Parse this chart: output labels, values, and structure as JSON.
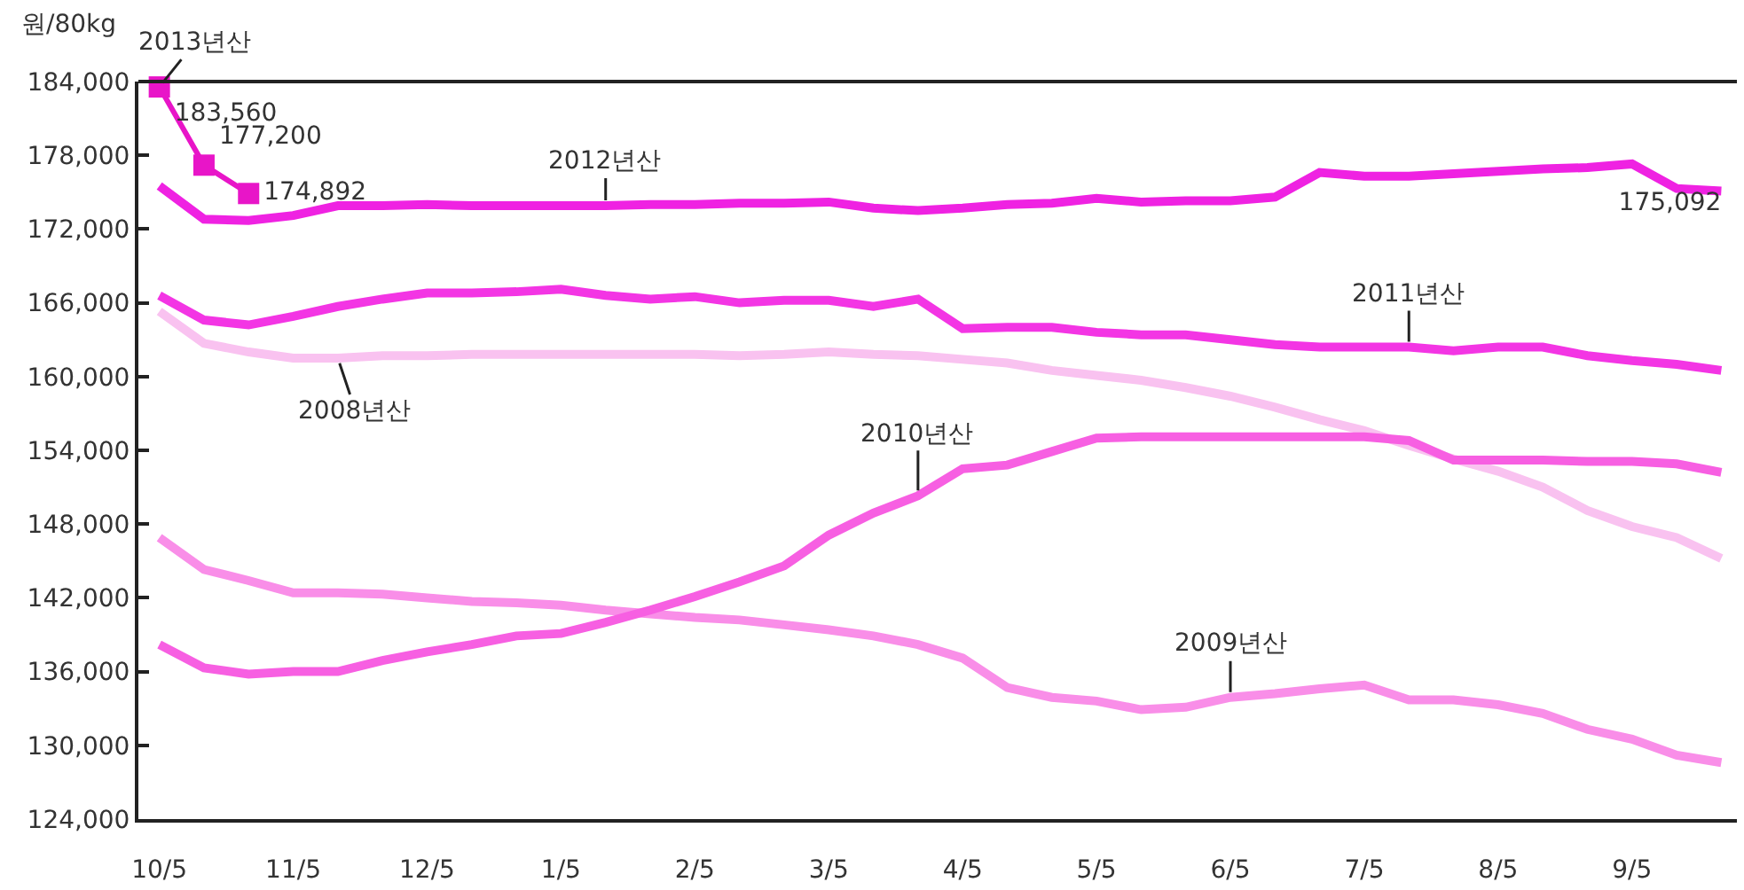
{
  "chart_data": {
    "type": "line",
    "ylabel": "원/80kg",
    "categories": [
      "10/5",
      null,
      null,
      "11/5",
      null,
      null,
      "12/5",
      null,
      null,
      "1/5",
      null,
      null,
      "2/5",
      null,
      null,
      "3/5",
      null,
      null,
      "4/5",
      null,
      null,
      "5/5",
      null,
      null,
      "6/5",
      null,
      null,
      "7/5",
      null,
      null,
      "8/5",
      null,
      null,
      "9/5",
      null,
      null
    ],
    "ylim": [
      124000,
      184000
    ],
    "yticks": [
      {
        "value": 124000,
        "label": "124,000"
      },
      {
        "value": 130000,
        "label": "130,000"
      },
      {
        "value": 136000,
        "label": "136,000"
      },
      {
        "value": 142000,
        "label": "142,000"
      },
      {
        "value": 148000,
        "label": "148,000"
      },
      {
        "value": 154000,
        "label": "154,000"
      },
      {
        "value": 160000,
        "label": "160,000"
      },
      {
        "value": 166000,
        "label": "166,000"
      },
      {
        "value": 172000,
        "label": "172,000"
      },
      {
        "value": 178000,
        "label": "178,000"
      },
      {
        "value": 184000,
        "label": "184,000"
      }
    ],
    "legend": false,
    "marker": "none",
    "line_style": "solid",
    "series": [
      {
        "name": "2008년산",
        "color": "#f9c2f0",
        "values": [
          165300,
          162700,
          162000,
          161500,
          161500,
          161700,
          161700,
          161800,
          161800,
          161800,
          161800,
          161800,
          161800,
          161700,
          161800,
          162000,
          161800,
          161700,
          161400,
          161100,
          160500,
          160100,
          159700,
          159100,
          158400,
          157500,
          156500,
          155600,
          154400,
          153300,
          152300,
          151000,
          149100,
          147800,
          146900,
          145200
        ]
      },
      {
        "name": "2009년산",
        "color": "#f98ee8",
        "values": [
          146900,
          144300,
          143400,
          142400,
          142400,
          142300,
          142000,
          141700,
          141600,
          141400,
          141000,
          140700,
          140400,
          140200,
          139800,
          139400,
          138900,
          138200,
          137100,
          134700,
          133900,
          133600,
          132900,
          133100,
          133900,
          134200,
          134600,
          134900,
          133700,
          133700,
          133300,
          132600,
          131300,
          130500,
          129200,
          128600
        ]
      },
      {
        "name": "2010년산",
        "color": "#f75fe2",
        "values": [
          138200,
          136300,
          135800,
          136000,
          136000,
          136900,
          137600,
          138200,
          138900,
          139100,
          140000,
          141000,
          142100,
          143300,
          144600,
          147100,
          148900,
          150300,
          152500,
          152800,
          153900,
          155000,
          155100,
          155100,
          155100,
          155100,
          155100,
          155100,
          154800,
          153200,
          153200,
          153200,
          153100,
          153100,
          152900,
          152200
        ]
      },
      {
        "name": "2011년산",
        "color": "#f335e4",
        "values": [
          166600,
          164600,
          164200,
          164900,
          165700,
          166300,
          166800,
          166800,
          166900,
          167100,
          166600,
          166300,
          166500,
          166000,
          166200,
          166200,
          165700,
          166300,
          163900,
          164000,
          164000,
          163600,
          163400,
          163400,
          163000,
          162600,
          162400,
          162400,
          162400,
          162100,
          162400,
          162400,
          161700,
          161300,
          161000,
          160500
        ]
      },
      {
        "name": "2012년산",
        "color": "#ef22e2",
        "values": [
          175500,
          172800,
          172700,
          173100,
          173900,
          173900,
          174000,
          173900,
          173900,
          173900,
          173900,
          174000,
          174000,
          174100,
          174100,
          174200,
          173700,
          173500,
          173700,
          174000,
          174100,
          174500,
          174200,
          174300,
          174300,
          174600,
          176600,
          176300,
          176300,
          176500,
          176700,
          176900,
          177000,
          177300,
          175300,
          175092
        ],
        "value_labels": [
          null,
          null,
          null,
          null,
          null,
          null,
          null,
          null,
          null,
          null,
          null,
          null,
          null,
          null,
          null,
          null,
          null,
          null,
          null,
          null,
          null,
          null,
          null,
          null,
          null,
          null,
          null,
          null,
          null,
          null,
          null,
          null,
          null,
          null,
          null,
          "175,092"
        ]
      },
      {
        "name": "2013년산",
        "color": "#e815c8",
        "marker": "square",
        "values": [
          183560,
          177200,
          174892,
          null,
          null,
          null,
          null,
          null,
          null,
          null,
          null,
          null,
          null,
          null,
          null,
          null,
          null,
          null,
          null,
          null,
          null,
          null,
          null,
          null,
          null,
          null,
          null,
          null,
          null,
          null,
          null,
          null,
          null,
          null,
          null,
          null
        ],
        "value_labels": [
          "183,560",
          "177,200",
          "174,892",
          null,
          null,
          null,
          null,
          null,
          null,
          null,
          null,
          null,
          null,
          null,
          null,
          null,
          null,
          null,
          null,
          null,
          null,
          null,
          null,
          null,
          null,
          null,
          null,
          null,
          null,
          null,
          null,
          null,
          null,
          null,
          null,
          null
        ]
      }
    ]
  }
}
